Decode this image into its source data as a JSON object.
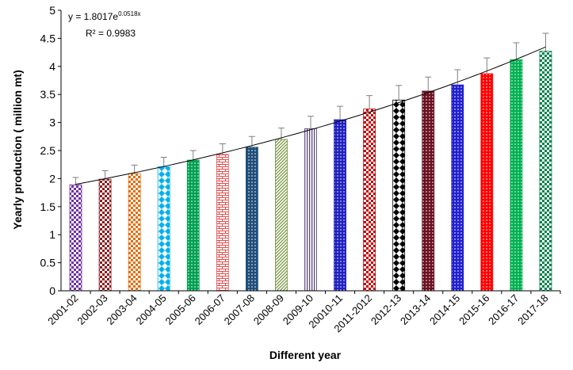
{
  "chart_data": {
    "type": "bar",
    "title": "",
    "xlabel": "Different year",
    "ylabel": "Yearly production ( million mt)",
    "ylim": [
      0,
      5
    ],
    "y_ticks": [
      "0",
      "0.5",
      "1",
      "1.5",
      "2",
      "2.5",
      "3",
      "3.5",
      "4",
      "4.5",
      "5"
    ],
    "grid": false,
    "categories": [
      "2001-02",
      "2002-03",
      "2003-04",
      "2004-05",
      "2005-06",
      "2006-07",
      "2007-08",
      "2008-09",
      "2009-10",
      "20010-11",
      "2011-2012",
      "2012-13",
      "2013-14",
      "2014-15",
      "2015-16",
      "2016-17",
      "2017-18"
    ],
    "values": [
      1.89,
      1.99,
      2.09,
      2.21,
      2.33,
      2.43,
      2.56,
      2.7,
      2.89,
      3.05,
      3.24,
      3.4,
      3.56,
      3.67,
      3.87,
      4.12,
      4.27
    ],
    "errors": [
      0.13,
      0.15,
      0.15,
      0.17,
      0.17,
      0.19,
      0.19,
      0.2,
      0.22,
      0.24,
      0.24,
      0.26,
      0.25,
      0.27,
      0.28,
      0.3,
      0.32
    ],
    "trendline": {
      "type": "exponential",
      "a": 1.8017,
      "b": 0.0518,
      "equation_prefix": "y = 1.8017e",
      "equation_exponent": "0.0518x",
      "r2_label": "R² = 0.9983"
    },
    "bar_styles": [
      {
        "pattern": "checker",
        "color": "#7030A0"
      },
      {
        "pattern": "checker",
        "color": "#8B1A1A"
      },
      {
        "pattern": "checker",
        "color": "#E46C0A"
      },
      {
        "pattern": "diamond",
        "color": "#00B0F0"
      },
      {
        "pattern": "dots",
        "color": "#00A050"
      },
      {
        "pattern": "brick",
        "color": "#E05050"
      },
      {
        "pattern": "dots",
        "color": "#1F4E79"
      },
      {
        "pattern": "diag",
        "color": "#76923C"
      },
      {
        "pattern": "vstripes",
        "color": "#5F497A"
      },
      {
        "pattern": "dots",
        "color": "#2020C0"
      },
      {
        "pattern": "checker",
        "color": "#C00000"
      },
      {
        "pattern": "diamond",
        "color": "#000000"
      },
      {
        "pattern": "dots",
        "color": "#6B1020"
      },
      {
        "pattern": "dots",
        "color": "#2020D0"
      },
      {
        "pattern": "dots",
        "color": "#FF0000"
      },
      {
        "pattern": "dots",
        "color": "#00B050"
      },
      {
        "pattern": "checker",
        "color": "#00804A"
      }
    ]
  }
}
